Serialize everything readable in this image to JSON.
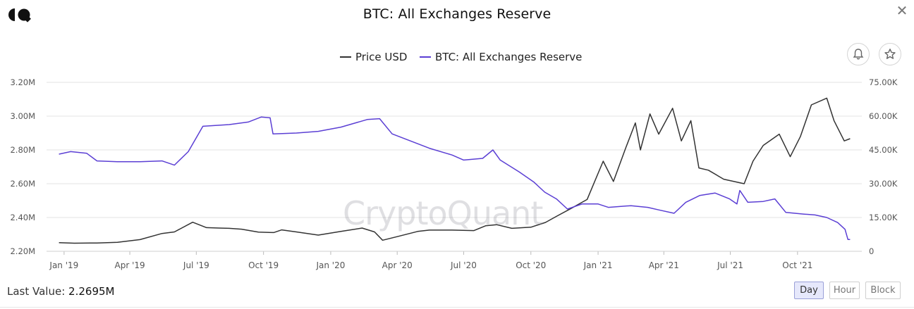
{
  "header": {
    "logo_icon": "cryptoquant-logo-icon",
    "title": "BTC: All Exchanges Reserve",
    "close_icon": "close-icon"
  },
  "legend": [
    {
      "label": "Price USD",
      "color": "#333333"
    },
    {
      "label": "BTC: All Exchanges Reserve",
      "color": "#5b3fd4"
    }
  ],
  "actions": {
    "alert_icon": "bell-icon",
    "favorite_icon": "star-icon"
  },
  "watermark": "CryptoQuant",
  "footer": {
    "last_value_label": "Last Value:",
    "last_value": "2.2695M",
    "resolutions": [
      "Day",
      "Hour",
      "Block"
    ],
    "active_resolution": "Day"
  },
  "chart_data": {
    "type": "line",
    "title": "BTC: All Exchanges Reserve",
    "x_ticks": [
      "Jan '19",
      "Apr '19",
      "Jul '19",
      "Oct '19",
      "Jan '20",
      "Apr '20",
      "Jul '20",
      "Oct '20",
      "Jan '21",
      "Apr '21",
      "Jul '21",
      "Oct '21"
    ],
    "y_left": {
      "ticks": [
        "2.20M",
        "2.40M",
        "2.60M",
        "2.80M",
        "3.00M",
        "3.20M"
      ],
      "range": [
        2200000,
        3200000
      ]
    },
    "y_right": {
      "ticks": [
        "0",
        "15.00K",
        "30.00K",
        "45.00K",
        "60.00K",
        "75.00K"
      ],
      "range": [
        0,
        75000
      ]
    },
    "grid": true,
    "legend_position": "top-center",
    "series": [
      {
        "name": "Price USD",
        "axis": "right",
        "color": "#333333",
        "points": [
          [
            "2018-12-25",
            3800
          ],
          [
            "2019-01-15",
            3600
          ],
          [
            "2019-02-15",
            3700
          ],
          [
            "2019-03-15",
            4000
          ],
          [
            "2019-04-15",
            5200
          ],
          [
            "2019-05-15",
            7900
          ],
          [
            "2019-06-01",
            8600
          ],
          [
            "2019-06-26",
            12900
          ],
          [
            "2019-07-15",
            10500
          ],
          [
            "2019-08-01",
            10300
          ],
          [
            "2019-08-15",
            10200
          ],
          [
            "2019-09-01",
            9800
          ],
          [
            "2019-09-24",
            8500
          ],
          [
            "2019-10-15",
            8300
          ],
          [
            "2019-10-26",
            9500
          ],
          [
            "2019-11-15",
            8600
          ],
          [
            "2019-12-15",
            7200
          ],
          [
            "2020-01-15",
            8800
          ],
          [
            "2020-02-13",
            10300
          ],
          [
            "2020-03-01",
            8600
          ],
          [
            "2020-03-12",
            4900
          ],
          [
            "2020-04-01",
            6500
          ],
          [
            "2020-04-29",
            8800
          ],
          [
            "2020-05-15",
            9400
          ],
          [
            "2020-06-15",
            9400
          ],
          [
            "2020-07-15",
            9200
          ],
          [
            "2020-07-31",
            11300
          ],
          [
            "2020-08-15",
            11800
          ],
          [
            "2020-09-05",
            10200
          ],
          [
            "2020-10-01",
            10700
          ],
          [
            "2020-10-21",
            12800
          ],
          [
            "2020-11-05",
            15500
          ],
          [
            "2020-11-25",
            19000
          ],
          [
            "2020-12-17",
            23000
          ],
          [
            "2021-01-08",
            40000
          ],
          [
            "2021-01-22",
            31000
          ],
          [
            "2021-02-08",
            46000
          ],
          [
            "2021-02-21",
            57000
          ],
          [
            "2021-02-28",
            45000
          ],
          [
            "2021-03-13",
            61000
          ],
          [
            "2021-03-25",
            52000
          ],
          [
            "2021-04-13",
            63500
          ],
          [
            "2021-04-25",
            49000
          ],
          [
            "2021-05-08",
            58000
          ],
          [
            "2021-05-19",
            37000
          ],
          [
            "2021-06-01",
            36000
          ],
          [
            "2021-06-22",
            32000
          ],
          [
            "2021-07-20",
            30000
          ],
          [
            "2021-08-01",
            40000
          ],
          [
            "2021-08-15",
            47000
          ],
          [
            "2021-09-06",
            52000
          ],
          [
            "2021-09-21",
            42000
          ],
          [
            "2021-10-05",
            51000
          ],
          [
            "2021-10-20",
            65000
          ],
          [
            "2021-11-10",
            68000
          ],
          [
            "2021-11-20",
            58000
          ],
          [
            "2021-12-04",
            49000
          ],
          [
            "2021-12-12",
            50000
          ]
        ]
      },
      {
        "name": "BTC: All Exchanges Reserve",
        "axis": "left",
        "color": "#5b3fd4",
        "points": [
          [
            "2018-12-25",
            2775000
          ],
          [
            "2019-01-10",
            2790000
          ],
          [
            "2019-02-01",
            2780000
          ],
          [
            "2019-02-15",
            2735000
          ],
          [
            "2019-03-15",
            2730000
          ],
          [
            "2019-04-15",
            2730000
          ],
          [
            "2019-05-15",
            2735000
          ],
          [
            "2019-06-01",
            2710000
          ],
          [
            "2019-06-20",
            2790000
          ],
          [
            "2019-07-10",
            2940000
          ],
          [
            "2019-08-15",
            2950000
          ],
          [
            "2019-09-10",
            2965000
          ],
          [
            "2019-09-28",
            2995000
          ],
          [
            "2019-10-10",
            2990000
          ],
          [
            "2019-10-14",
            2895000
          ],
          [
            "2019-11-15",
            2900000
          ],
          [
            "2019-12-15",
            2910000
          ],
          [
            "2020-01-15",
            2935000
          ],
          [
            "2020-02-20",
            2980000
          ],
          [
            "2020-03-08",
            2985000
          ],
          [
            "2020-03-25",
            2895000
          ],
          [
            "2020-04-15",
            2860000
          ],
          [
            "2020-05-15",
            2810000
          ],
          [
            "2020-06-15",
            2770000
          ],
          [
            "2020-07-01",
            2740000
          ],
          [
            "2020-07-27",
            2750000
          ],
          [
            "2020-08-10",
            2800000
          ],
          [
            "2020-08-20",
            2740000
          ],
          [
            "2020-09-15",
            2670000
          ],
          [
            "2020-10-05",
            2610000
          ],
          [
            "2020-10-20",
            2550000
          ],
          [
            "2020-11-05",
            2510000
          ],
          [
            "2020-11-20",
            2450000
          ],
          [
            "2020-12-10",
            2480000
          ],
          [
            "2021-01-01",
            2480000
          ],
          [
            "2021-01-15",
            2460000
          ],
          [
            "2021-02-15",
            2470000
          ],
          [
            "2021-03-10",
            2460000
          ],
          [
            "2021-03-25",
            2445000
          ],
          [
            "2021-04-15",
            2425000
          ],
          [
            "2021-05-01",
            2490000
          ],
          [
            "2021-05-20",
            2530000
          ],
          [
            "2021-06-10",
            2545000
          ],
          [
            "2021-06-30",
            2510000
          ],
          [
            "2021-07-10",
            2480000
          ],
          [
            "2021-07-14",
            2560000
          ],
          [
            "2021-07-25",
            2490000
          ],
          [
            "2021-08-15",
            2495000
          ],
          [
            "2021-08-31",
            2510000
          ],
          [
            "2021-09-15",
            2430000
          ],
          [
            "2021-10-10",
            2420000
          ],
          [
            "2021-10-25",
            2415000
          ],
          [
            "2021-11-10",
            2400000
          ],
          [
            "2021-11-25",
            2370000
          ],
          [
            "2021-12-05",
            2330000
          ],
          [
            "2021-12-09",
            2270000
          ],
          [
            "2021-12-12",
            2269500
          ]
        ]
      }
    ]
  }
}
